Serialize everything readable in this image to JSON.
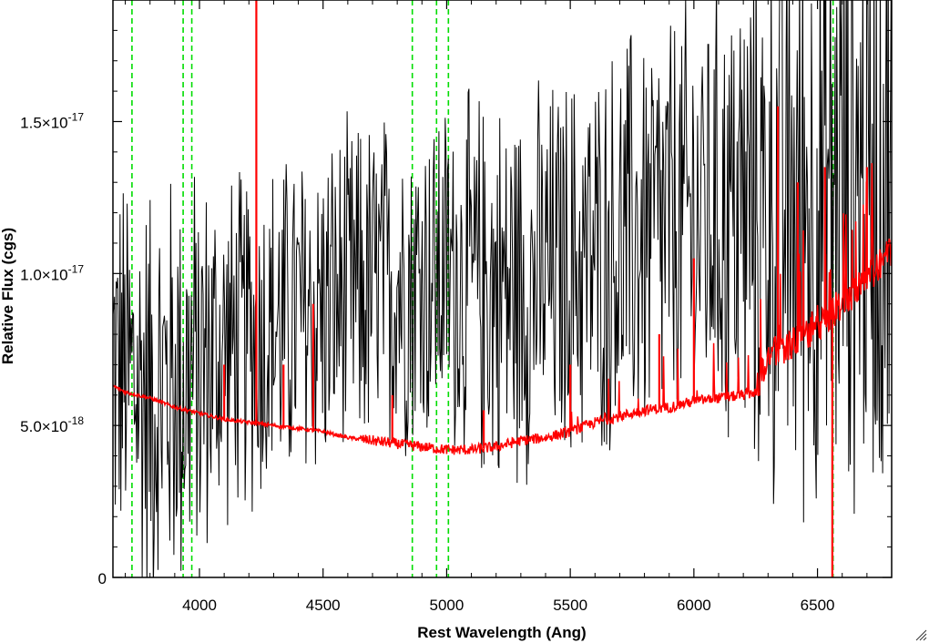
{
  "chart_data": {
    "type": "line",
    "title": "",
    "xlabel": "Rest Wavelength (Ang)",
    "ylabel": "Relative Flux (cgs)",
    "xlim": [
      3650,
      6800
    ],
    "ylim": [
      0,
      1.9e-17
    ],
    "x_ticks": [
      {
        "value": 4000,
        "label": "4000"
      },
      {
        "value": 4500,
        "label": "4500"
      },
      {
        "value": 5000,
        "label": "5000"
      },
      {
        "value": 5500,
        "label": "5500"
      },
      {
        "value": 6000,
        "label": "6000"
      },
      {
        "value": 6500,
        "label": "6500"
      }
    ],
    "y_ticks": [
      {
        "value": 0,
        "mantissa": "0",
        "exponent": ""
      },
      {
        "value": 5e-18,
        "mantissa": "5.0×10",
        "exponent": "-18"
      },
      {
        "value": 1e-17,
        "mantissa": "1.0×10",
        "exponent": "-17"
      },
      {
        "value": 1.5e-17,
        "mantissa": "1.5×10",
        "exponent": "-17"
      }
    ],
    "reference_lines_x": [
      3727,
      3934,
      3969,
      4861,
      4959,
      5007,
      6563
    ],
    "series": [
      {
        "color": "#000000",
        "style": "noisy",
        "x": [
          3650,
          3800,
          3950,
          4100,
          4250,
          4400,
          4550,
          4700,
          4850,
          5000,
          5150,
          5300,
          5450,
          5600,
          5750,
          5900,
          6050,
          6200,
          6350,
          6500,
          6650,
          6800
        ],
        "mean": [
          7e-18,
          6e-18,
          6.5e-18,
          7.5e-18,
          8e-18,
          8.5e-18,
          9e-18,
          9.5e-18,
          9.8e-18,
          1e-17,
          9.5e-18,
          9.5e-18,
          1e-17,
          1.05e-17,
          1.1e-17,
          1.15e-17,
          1.2e-17,
          1.2e-17,
          1.2e-17,
          1.25e-17,
          1.3e-17,
          1.35e-17
        ],
        "noise": [
          4.5e-18,
          5e-18,
          5e-18,
          4e-18,
          4e-18,
          4e-18,
          4e-18,
          4e-18,
          4e-18,
          4e-18,
          4.5e-18,
          4.5e-18,
          4.5e-18,
          4.5e-18,
          5e-18,
          5e-18,
          5e-18,
          6e-18,
          7e-18,
          7.5e-18,
          7.5e-18,
          7.5e-18
        ]
      },
      {
        "color": "#ff0000",
        "style": "model",
        "x": [
          3650,
          3700,
          3800,
          3900,
          4000,
          4100,
          4200,
          4300,
          4400,
          4500,
          4600,
          4700,
          4800,
          4900,
          5000,
          5100,
          5200,
          5300,
          5400,
          5500,
          5600,
          5700,
          5800,
          5900,
          6000,
          6100,
          6200,
          6250,
          6300,
          6400,
          6500,
          6600,
          6700,
          6800
        ],
        "y": [
          6.3e-18,
          6.1e-18,
          5.9e-18,
          5.6e-18,
          5.4e-18,
          5.2e-18,
          5.1e-18,
          5e-18,
          4.9e-18,
          4.8e-18,
          4.6e-18,
          4.5e-18,
          4.4e-18,
          4.3e-18,
          4.2e-18,
          4.2e-18,
          4.3e-18,
          4.5e-18,
          4.6e-18,
          4.8e-18,
          5.1e-18,
          5.3e-18,
          5.5e-18,
          5.6e-18,
          5.8e-18,
          5.9e-18,
          6e-18,
          6.1e-18,
          7.3e-18,
          7.7e-18,
          8.2e-18,
          9e-18,
          9.8e-18,
          1.08e-17
        ],
        "spikes": [
          {
            "x": 4230,
            "y": 1.9e-17
          },
          {
            "x": 4100,
            "y": 7e-18
          },
          {
            "x": 4340,
            "y": 7e-18
          },
          {
            "x": 4460,
            "y": 9e-18
          },
          {
            "x": 4780,
            "y": 6e-18
          },
          {
            "x": 5150,
            "y": 5.5e-18
          },
          {
            "x": 5500,
            "y": 7e-18
          },
          {
            "x": 5860,
            "y": 8e-18
          },
          {
            "x": 6000,
            "y": 1.05e-17
          },
          {
            "x": 6340,
            "y": 1.55e-17
          },
          {
            "x": 6420,
            "y": 1.3e-17
          },
          {
            "x": 6530,
            "y": 1.35e-17
          },
          {
            "x": 6560,
            "y": 0
          },
          {
            "x": 6700,
            "y": 1.35e-17
          }
        ]
      }
    ]
  }
}
